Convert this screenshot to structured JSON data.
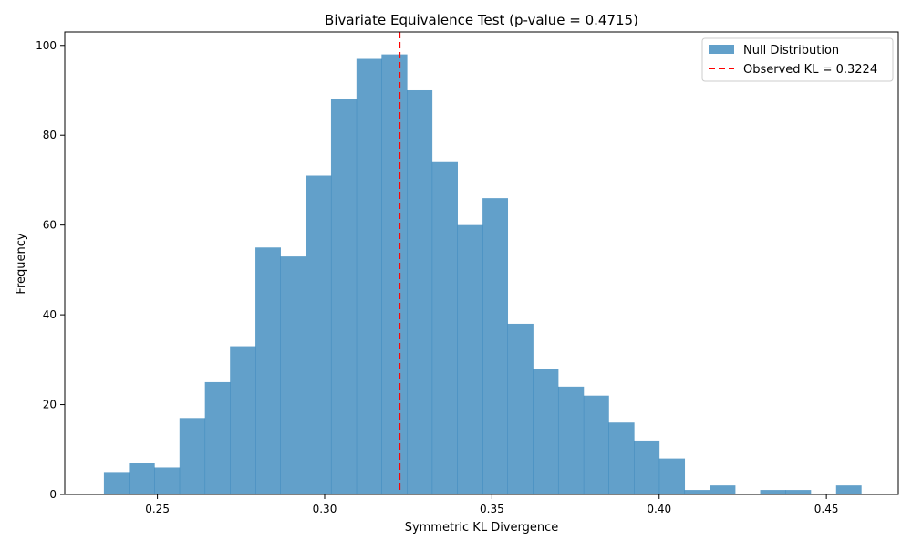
{
  "chart_data": {
    "type": "bar",
    "title": "Bivariate Equivalence Test (p-value = 0.4715)",
    "xlabel": "Symmetric KL Divergence",
    "ylabel": "Frequency",
    "xlim": [
      0.2223,
      0.4715
    ],
    "ylim": [
      0,
      103
    ],
    "x_ticks": [
      0.25,
      0.3,
      0.35,
      0.4,
      0.45
    ],
    "x_tick_labels": [
      "0.25",
      "0.30",
      "0.35",
      "0.40",
      "0.45"
    ],
    "y_ticks": [
      0,
      20,
      40,
      60,
      80,
      100
    ],
    "y_tick_labels": [
      "0",
      "20",
      "40",
      "60",
      "80",
      "100"
    ],
    "grid": false,
    "legend_position": "top-right",
    "bin_edges": [
      0.234,
      0.2415,
      0.2491,
      0.2566,
      0.2642,
      0.2717,
      0.2793,
      0.2868,
      0.2944,
      0.3019,
      0.3095,
      0.317,
      0.3246,
      0.3321,
      0.3397,
      0.3472,
      0.3547,
      0.3623,
      0.3698,
      0.3774,
      0.3849,
      0.3925,
      0.4,
      0.4076,
      0.4151,
      0.4227,
      0.4302,
      0.4378,
      0.4453,
      0.4529,
      0.4604
    ],
    "counts": [
      5,
      7,
      6,
      17,
      25,
      33,
      55,
      53,
      71,
      88,
      97,
      98,
      90,
      74,
      60,
      66,
      38,
      28,
      24,
      22,
      16,
      12,
      8,
      1,
      2,
      0,
      1,
      1,
      0,
      2
    ],
    "series": [
      {
        "name": "Null Distribution",
        "color": "#1f77b4"
      }
    ],
    "observed_kl": 0.3224,
    "observed_color": "#ff0000",
    "legend": {
      "hist_label": "Null Distribution",
      "line_label": "Observed KL = 0.3224"
    }
  }
}
